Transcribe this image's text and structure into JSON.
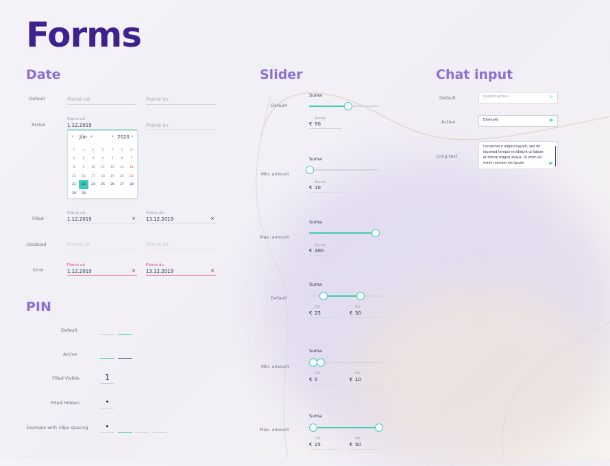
{
  "page_title": "Forms",
  "sections": {
    "date": "Date",
    "slider": "Slider",
    "chat": "Chat input",
    "pin": "PIN"
  },
  "date": {
    "rows": {
      "default": "Default",
      "active": "Active",
      "filled": "Filled",
      "disabled": "Disabled",
      "error": "Error"
    },
    "from_label": "Platné od",
    "to_label": "Platné do",
    "from_value": "1.12.2019",
    "to_value": "13.12.2019",
    "clear": "×",
    "calendar": {
      "month": "Jún",
      "year": "2020",
      "prev": "‹",
      "next": "›",
      "weekdays": [
        "P",
        "U",
        "S",
        "Š",
        "P",
        "S",
        "N"
      ],
      "days": [
        [
          "1",
          "2",
          "3",
          "4",
          "5",
          "6",
          "7"
        ],
        [
          "8",
          "9",
          "10",
          "11",
          "12",
          "13",
          "14"
        ],
        [
          "15",
          "16",
          "17",
          "18",
          "19",
          "20",
          "21"
        ],
        [
          "22",
          "23",
          "24",
          "25",
          "26",
          "27",
          "28"
        ],
        [
          "29",
          "30",
          "",
          "",
          "",
          "",
          ""
        ]
      ],
      "selected": "23"
    }
  },
  "pin": {
    "rows": {
      "default": "Default",
      "active": "Active",
      "filled_visible": "Filled Visible",
      "filled_hidden": "Filled Hidden",
      "spacing": "Example with 18px spacing"
    },
    "visible_digit": "1",
    "hidden_dot": "•"
  },
  "slider": {
    "title": "Suma",
    "sum_label": "Suma",
    "from_label": "Od",
    "to_label": "Do",
    "currency": "€",
    "rows": {
      "default": "Default",
      "min": "Min. amount",
      "max": "Max. amount"
    },
    "single": [
      {
        "value": "50",
        "fraction": 0.58
      },
      {
        "value": "10",
        "fraction": 0.0
      },
      {
        "value": "300",
        "fraction": 1.0
      }
    ],
    "range": [
      {
        "from": "25",
        "to": "50",
        "from_fraction": 0.16,
        "to_fraction": 0.72
      },
      {
        "from": "0",
        "to": "10",
        "from_fraction": 0.0,
        "to_fraction": 0.11
      },
      {
        "from": "25",
        "to": "50",
        "from_fraction": 0.0,
        "to_fraction": 1.0
      }
    ]
  },
  "chat": {
    "rows": {
      "default": "Default",
      "active": "Active",
      "long": "Long text"
    },
    "placeholder": "Napíšte správu...",
    "active_value": "Example|",
    "long_value": "Consectetur adipiscing elit, sed do eiusmod tempor incididunt ut labore et dolore magna aliqua. Ut enim ad minim veniam em ipsum",
    "send_icon": "send-icon"
  },
  "colors": {
    "accent": "#3ccbb5",
    "title": "#3d218f",
    "section": "#8b6fd3",
    "error": "#e74c68"
  }
}
